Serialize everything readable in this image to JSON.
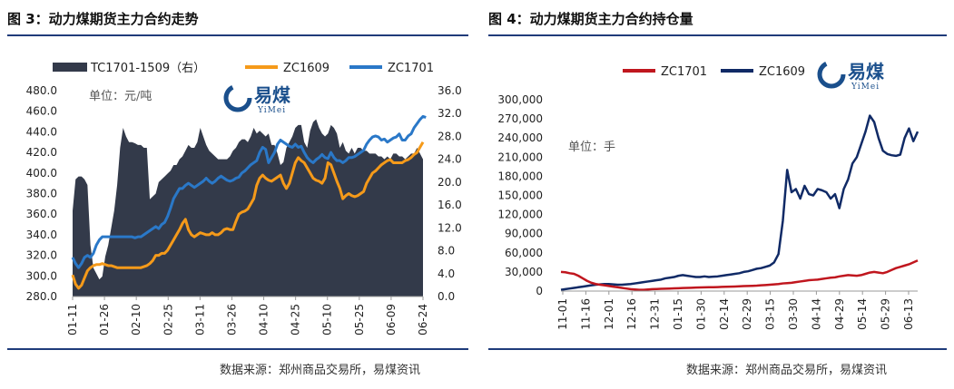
{
  "left": {
    "title": "图 3：动力煤期货主力合约走势",
    "source": "数据来源：郑州商品交易所，易煤资讯",
    "unit_label": "单位：元/吨",
    "logo_text": "易煤",
    "logo_sub": "YiMei"
  },
  "right": {
    "title": "图 4：动力煤期货主力合约持仓量",
    "source": "数据来源：郑州商品交易所，易煤资讯",
    "unit_label": "单位：手",
    "logo_text": "易煤",
    "logo_sub": "YiMei"
  },
  "colors": {
    "spread": "#333a4a",
    "zc1609_left": "#f59a1a",
    "zc1701_left": "#2a78c8",
    "zc1701_right": "#c0161e",
    "zc1609_right": "#102a66",
    "rule": "#1f3b7a",
    "logo_blue": "#1a4f8c"
  },
  "chart_data": [
    {
      "type": "line",
      "legend_position": "top",
      "grid": false,
      "x_ticks": [
        "01-11",
        "01-26",
        "02-10",
        "02-25",
        "03-11",
        "03-26",
        "04-10",
        "04-25",
        "05-10",
        "05-25",
        "06-09",
        "06-24"
      ],
      "ylim": [
        280,
        480
      ],
      "y_ticks": [
        280.0,
        300.0,
        320.0,
        340.0,
        360.0,
        380.0,
        400.0,
        420.0,
        440.0,
        460.0,
        480.0
      ],
      "y2lim": [
        0,
        36
      ],
      "y2_ticks": [
        0.0,
        4.0,
        8.0,
        12.0,
        16.0,
        20.0,
        24.0,
        28.0,
        32.0,
        36.0
      ],
      "series": [
        {
          "name": "TC1701-1509（右）",
          "kind": "area",
          "axis": "right",
          "values": [
            15.0,
            20.5,
            21.0,
            21.0,
            20.5,
            19.5,
            9.0,
            5.0,
            4.0,
            3.0,
            3.5,
            7.0,
            9.0,
            12.0,
            15.0,
            19.5,
            26.0,
            29.5,
            28.0,
            27.0,
            27.0,
            26.8,
            26.5,
            26.5,
            26.0,
            26.0,
            17.0,
            17.5,
            18.0,
            20.0,
            20.5,
            21.0,
            21.5,
            22.0,
            23.0,
            23.0,
            24.0,
            24.5,
            25.5,
            26.5,
            26.0,
            26.0,
            27.0,
            29.5,
            28.0,
            26.5,
            25.5,
            25.0,
            24.5,
            24.0,
            24.0,
            24.0,
            24.0,
            24.5,
            25.5,
            26.0,
            27.0,
            27.5,
            27.5,
            27.0,
            28.0,
            29.5,
            28.5,
            29.0,
            28.5,
            28.0,
            28.5,
            26.5,
            26.5,
            25.0,
            23.0,
            23.5,
            26.0,
            27.0,
            28.0,
            29.5,
            30.0,
            30.0,
            27.0,
            26.0,
            29.0,
            30.5,
            31.0,
            29.5,
            28.5,
            28.0,
            28.5,
            30.0,
            29.5,
            28.5,
            26.0,
            27.0,
            25.5,
            25.0,
            26.0,
            25.0,
            26.0,
            26.0,
            25.5,
            25.5,
            25.0,
            25.0,
            25.0,
            24.5,
            24.5,
            24.0,
            24.5,
            24.0,
            25.0,
            25.0,
            24.5,
            24.5,
            24.0,
            24.5,
            25.0,
            25.0,
            26.0,
            25.0,
            24.0
          ]
        },
        {
          "name": "ZC1609",
          "kind": "line",
          "axis": "left",
          "values": [
            301,
            292,
            288,
            291,
            298,
            305,
            308,
            310,
            311,
            311,
            312,
            311,
            310,
            310,
            309,
            308,
            308,
            308,
            308,
            308,
            308,
            308,
            308,
            308,
            309,
            310,
            312,
            315,
            320,
            320,
            322,
            322,
            325,
            330,
            335,
            340,
            345,
            351,
            355,
            345,
            340,
            338,
            340,
            342,
            341,
            340,
            340,
            342,
            340,
            340,
            342,
            345,
            346,
            345,
            345,
            353,
            360,
            362,
            363,
            365,
            370,
            375,
            388,
            395,
            398,
            395,
            393,
            392,
            394,
            396,
            398,
            390,
            385,
            390,
            400,
            410,
            415,
            412,
            410,
            405,
            400,
            395,
            393,
            392,
            390,
            395,
            410,
            408,
            400,
            392,
            385,
            375,
            378,
            380,
            378,
            377,
            378,
            380,
            382,
            390,
            395,
            400,
            402,
            405,
            408,
            410,
            412,
            413,
            410,
            410,
            410,
            410,
            412,
            413,
            415,
            418,
            420,
            425,
            430
          ]
        },
        {
          "name": "ZC1701",
          "kind": "line",
          "axis": "left",
          "values": [
            318,
            312,
            308,
            312,
            318,
            320,
            318,
            322,
            330,
            335,
            338,
            338,
            338,
            338,
            338,
            338,
            338,
            338,
            338,
            338,
            338,
            337,
            338,
            338,
            340,
            342,
            344,
            346,
            348,
            346,
            350,
            352,
            358,
            366,
            375,
            380,
            385,
            385,
            388,
            390,
            388,
            386,
            388,
            390,
            392,
            395,
            392,
            390,
            392,
            395,
            397,
            395,
            393,
            392,
            393,
            395,
            396,
            400,
            402,
            405,
            408,
            410,
            412,
            420,
            425,
            423,
            410,
            415,
            420,
            428,
            432,
            430,
            428,
            426,
            425,
            428,
            425,
            426,
            420,
            415,
            412,
            410,
            413,
            415,
            418,
            415,
            414,
            420,
            415,
            412,
            412,
            410,
            412,
            415,
            415,
            416,
            418,
            420,
            422,
            428,
            432,
            435,
            436,
            435,
            432,
            433,
            430,
            432,
            434,
            435,
            438,
            432,
            432,
            436,
            438,
            444,
            448,
            452,
            455,
            454
          ]
        }
      ]
    },
    {
      "type": "line",
      "legend_position": "top",
      "grid": false,
      "x_ticks": [
        "11-01",
        "11-16",
        "12-01",
        "12-16",
        "12-31",
        "01-15",
        "01-30",
        "02-14",
        "02-29",
        "03-15",
        "03-30",
        "04-14",
        "04-29",
        "05-14",
        "05-29",
        "06-13"
      ],
      "ylim": [
        0,
        300000
      ],
      "y_ticks": [
        0,
        30000,
        60000,
        90000,
        120000,
        150000,
        180000,
        210000,
        240000,
        270000,
        300000
      ],
      "y_tick_labels": [
        "0",
        "30,000",
        "60,000",
        "90,000",
        "120,000",
        "150,000",
        "180,000",
        "210,000",
        "240,000",
        "270,000",
        "300,000"
      ],
      "series": [
        {
          "name": "ZC1701",
          "kind": "line",
          "values": [
            30000,
            29500,
            28000,
            27000,
            24000,
            20000,
            16000,
            13000,
            11000,
            10000,
            9000,
            8000,
            7000,
            6000,
            5000,
            4000,
            3000,
            2500,
            2000,
            2000,
            2500,
            3000,
            3200,
            3500,
            3800,
            4000,
            4200,
            4500,
            4800,
            5000,
            5200,
            5500,
            5600,
            5800,
            6000,
            6100,
            6300,
            6500,
            6700,
            7000,
            7200,
            7500,
            7800,
            8000,
            8200,
            8500,
            9000,
            9500,
            10000,
            10500,
            11000,
            12000,
            12500,
            13000,
            14000,
            15000,
            16000,
            17000,
            17500,
            18000,
            19000,
            20000,
            21000,
            21500,
            23000,
            24000,
            25000,
            24500,
            24000,
            25000,
            27000,
            29000,
            30000,
            29000,
            28000,
            30000,
            33000,
            36000,
            38000,
            40000,
            42000,
            45000,
            48000
          ]
        },
        {
          "name": "ZC1609",
          "kind": "line",
          "values": [
            2000,
            3000,
            4000,
            5000,
            6000,
            7000,
            8000,
            9000,
            10000,
            10500,
            11000,
            11000,
            10500,
            10000,
            10000,
            10500,
            11000,
            12000,
            13000,
            14000,
            15000,
            16000,
            17000,
            18000,
            20000,
            21000,
            22000,
            24000,
            25000,
            24000,
            23000,
            22000,
            22000,
            23000,
            22000,
            22500,
            23000,
            24000,
            25000,
            26000,
            27000,
            28000,
            30000,
            31000,
            33000,
            35000,
            36000,
            38000,
            40000,
            45000,
            58000,
            110000,
            190000,
            155000,
            160000,
            145000,
            165000,
            152000,
            150000,
            160000,
            158000,
            155000,
            145000,
            152000,
            130000,
            160000,
            175000,
            200000,
            210000,
            230000,
            250000,
            275000,
            265000,
            240000,
            220000,
            215000,
            213000,
            212000,
            214000,
            240000,
            255000,
            235000,
            250000
          ]
        }
      ]
    }
  ]
}
